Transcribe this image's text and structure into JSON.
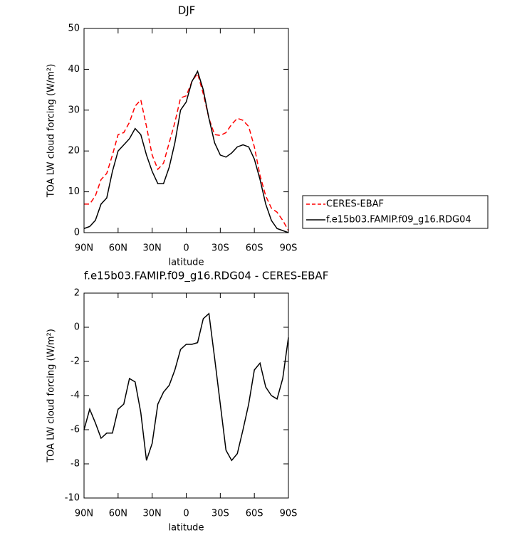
{
  "chart_data": [
    {
      "type": "line",
      "title": "DJF",
      "x_label": "latitude",
      "y_label": "TOA LW cloud forcing (W/m²)",
      "x": [
        90,
        85,
        80,
        75,
        70,
        65,
        60,
        55,
        50,
        45,
        40,
        35,
        30,
        25,
        20,
        15,
        10,
        5,
        0,
        -5,
        -10,
        -15,
        -20,
        -25,
        -30,
        -35,
        -40,
        -45,
        -50,
        -55,
        -60,
        -65,
        -70,
        -75,
        -80,
        -85,
        -90
      ],
      "series": [
        {
          "name": "CERES-EBAF",
          "color": "#ff0000",
          "line_style": "dashed",
          "values": [
            7,
            7,
            9,
            13,
            14.5,
            19,
            24,
            24.5,
            27,
            31,
            32.5,
            26,
            19,
            15.5,
            17,
            22,
            27,
            33,
            33.5,
            37,
            39,
            34,
            28,
            24,
            23.8,
            24.5,
            26.5,
            28,
            27.5,
            26,
            21,
            14,
            9,
            6,
            5,
            3,
            0.5
          ]
        },
        {
          "name": "f.e15b03.FAMIP.f09_g16.RDG04",
          "color": "#000000",
          "line_style": "solid",
          "values": [
            1,
            1.5,
            3,
            7,
            8.5,
            15,
            20,
            21.5,
            23,
            25.5,
            24,
            19,
            15,
            12,
            12,
            16,
            22,
            30,
            32,
            37,
            39.5,
            35,
            28,
            22,
            19,
            18.5,
            19.5,
            21,
            21.5,
            21,
            18,
            13,
            7,
            3,
            1,
            0.5,
            0
          ]
        }
      ],
      "xlim": [
        90,
        -90
      ],
      "xticks": [
        {
          "value": 90,
          "label": "90N"
        },
        {
          "value": 60,
          "label": "60N"
        },
        {
          "value": 30,
          "label": "30N"
        },
        0,
        {
          "value": -30,
          "label": "30S"
        },
        {
          "value": -60,
          "label": "60S"
        },
        {
          "value": -90,
          "label": "90S"
        }
      ],
      "ylim": [
        0,
        50
      ],
      "yticks": [
        0,
        10,
        20,
        30,
        40,
        50
      ],
      "legend": "right"
    },
    {
      "type": "line",
      "title": "f.e15b03.FAMIP.f09_g16.RDG04 - CERES-EBAF",
      "x_label": "latitude",
      "y_label": "TOA LW cloud forcing (W/m²)",
      "x": [
        90,
        85,
        80,
        75,
        70,
        65,
        60,
        55,
        50,
        45,
        40,
        35,
        30,
        25,
        20,
        15,
        10,
        5,
        0,
        -5,
        -10,
        -15,
        -20,
        -25,
        -30,
        -35,
        -40,
        -45,
        -50,
        -55,
        -60,
        -65,
        -70,
        -75,
        -80,
        -85,
        -90
      ],
      "series": [
        {
          "color": "#000000",
          "line_style": "solid",
          "values": [
            -6,
            -4.8,
            -5.6,
            -6.5,
            -6.2,
            -6.2,
            -4.8,
            -4.5,
            -3,
            -3.2,
            -5,
            -7.8,
            -6.8,
            -4.5,
            -3.8,
            -3.4,
            -2.5,
            -1.3,
            -1,
            -1,
            -0.9,
            0.5,
            0.8,
            -1.8,
            -4.5,
            -7.2,
            -7.8,
            -7.4,
            -6,
            -4.5,
            -2.5,
            -2.1,
            -3.5,
            -4,
            -4.2,
            -3,
            -0.6
          ]
        }
      ],
      "xlim": [
        90,
        -90
      ],
      "xticks": [
        {
          "value": 90,
          "label": "90N"
        },
        {
          "value": 60,
          "label": "60N"
        },
        {
          "value": 30,
          "label": "30N"
        },
        0,
        {
          "value": -30,
          "label": "30S"
        },
        {
          "value": -60,
          "label": "60S"
        },
        {
          "value": -90,
          "label": "90S"
        }
      ],
      "ylim": [
        -10,
        2
      ],
      "yticks": [
        -10,
        -8,
        -6,
        -4,
        -2,
        0,
        2
      ]
    }
  ]
}
